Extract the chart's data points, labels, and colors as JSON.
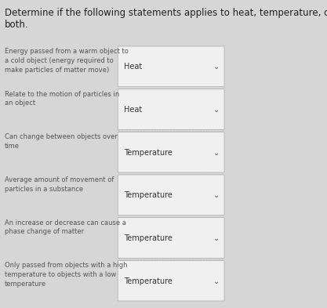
{
  "title": "Determine if the following statements applies to heat, temperature, or\nboth.",
  "title_fontsize": 8.5,
  "background_color": "#d6d6d6",
  "box_border": "#aaaaaa",
  "box_facecolor": "#f0f0f0",
  "rows": [
    {
      "question": "Energy passed from a warm object to\na cold object (energy required to\nmake particles of matter move)",
      "answer": "Heat"
    },
    {
      "question": "Relate to the motion of particles in\nan object",
      "answer": "Heat"
    },
    {
      "question": "Can change between objects over\ntime",
      "answer": "Temperature"
    },
    {
      "question": "Average amount of movement of\nparticles in a substance",
      "answer": "Temperature"
    },
    {
      "question": "An increase or decrease can cause a\nphase change of matter",
      "answer": "Temperature"
    },
    {
      "question": "Only passed from objects with a high\ntemperature to objects with a low\ntemperature",
      "answer": "Temperature"
    }
  ],
  "question_fontsize": 6.0,
  "answer_fontsize": 7.0,
  "text_color_question": "#555555",
  "text_color_answer": "#333333",
  "separator_color": "#bbbbbb",
  "chevron_color": "#555555"
}
